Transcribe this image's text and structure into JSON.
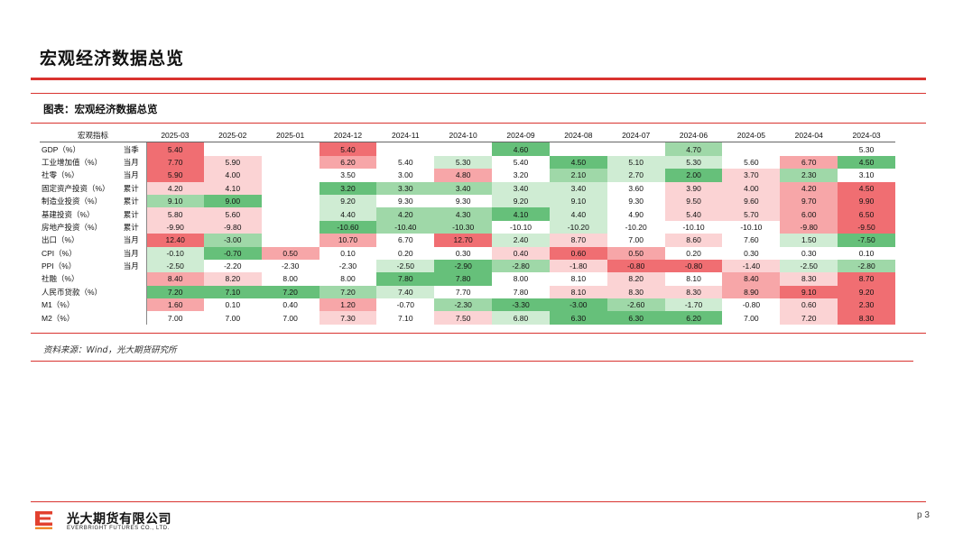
{
  "page": {
    "title": "宏观经济数据总览",
    "figure_title": "图表：宏观经济数据总览",
    "source": "资料来源：Wind，光大期货研究所",
    "page_number": "p 3"
  },
  "footer": {
    "company_cn": "光大期货有限公司",
    "company_en": "EVERBRIGHT FUTURES CO., LTD."
  },
  "colors": {
    "accent": "#d9332f",
    "strong_red": "#f06e72",
    "mid_red": "#f7a6a8",
    "light_red": "#fbd3d4",
    "strong_green": "#66c07a",
    "mid_green": "#9fd8a8",
    "light_green": "#cfecd3"
  },
  "table": {
    "header_label": "宏观指标",
    "columns": [
      "2025-03",
      "2025-02",
      "2025-01",
      "2024-12",
      "2024-11",
      "2024-10",
      "2024-09",
      "2024-08",
      "2024-07",
      "2024-06",
      "2024-05",
      "2024-04",
      "2024-03"
    ],
    "rows": [
      {
        "name": "GDP（%）",
        "freq": "当季",
        "values": [
          "5.40",
          "",
          "",
          "5.40",
          "",
          "",
          "4.60",
          "",
          "",
          "4.70",
          "",
          "",
          "5.30"
        ],
        "tones": [
          "R3",
          "",
          "",
          "R3",
          "",
          "",
          "G3",
          "",
          "",
          "G2",
          "",
          "",
          "N"
        ]
      },
      {
        "name": "工业增加值（%）",
        "freq": "当月",
        "values": [
          "7.70",
          "5.90",
          "",
          "6.20",
          "5.40",
          "5.30",
          "5.40",
          "4.50",
          "5.10",
          "5.30",
          "5.60",
          "6.70",
          "4.50"
        ],
        "tones": [
          "R3",
          "R1",
          "",
          "R2",
          "N",
          "G1",
          "N",
          "G3",
          "G1",
          "G1",
          "N",
          "R2",
          "G3"
        ]
      },
      {
        "name": "社零（%）",
        "freq": "当月",
        "values": [
          "5.90",
          "4.00",
          "",
          "3.50",
          "3.00",
          "4.80",
          "3.20",
          "2.10",
          "2.70",
          "2.00",
          "3.70",
          "2.30",
          "3.10"
        ],
        "tones": [
          "R3",
          "R1",
          "",
          "N",
          "N",
          "R2",
          "N",
          "G2",
          "G1",
          "G3",
          "R1",
          "G2",
          "N"
        ]
      },
      {
        "name": "固定资产投资（%）",
        "freq": "累计",
        "values": [
          "4.20",
          "4.10",
          "",
          "3.20",
          "3.30",
          "3.40",
          "3.40",
          "3.40",
          "3.60",
          "3.90",
          "4.00",
          "4.20",
          "4.50"
        ],
        "tones": [
          "R1",
          "R1",
          "",
          "G3",
          "G2",
          "G2",
          "G1",
          "G1",
          "N",
          "R1",
          "R1",
          "R2",
          "R3"
        ]
      },
      {
        "name": "制造业投资（%）",
        "freq": "累计",
        "values": [
          "9.10",
          "9.00",
          "",
          "9.20",
          "9.30",
          "9.30",
          "9.20",
          "9.10",
          "9.30",
          "9.50",
          "9.60",
          "9.70",
          "9.90"
        ],
        "tones": [
          "G2",
          "G3",
          "",
          "G1",
          "N",
          "N",
          "G1",
          "G1",
          "N",
          "R1",
          "R1",
          "R2",
          "R3"
        ]
      },
      {
        "name": "基建投资（%）",
        "freq": "累计",
        "values": [
          "5.80",
          "5.60",
          "",
          "4.40",
          "4.20",
          "4.30",
          "4.10",
          "4.40",
          "4.90",
          "5.40",
          "5.70",
          "6.00",
          "6.50"
        ],
        "tones": [
          "R1",
          "R1",
          "",
          "G1",
          "G2",
          "G2",
          "G3",
          "G1",
          "N",
          "R1",
          "R1",
          "R2",
          "R3"
        ]
      },
      {
        "name": "房地产投资（%）",
        "freq": "累计",
        "values": [
          "-9.90",
          "-9.80",
          "",
          "-10.60",
          "-10.40",
          "-10.30",
          "-10.10",
          "-10.20",
          "-10.20",
          "-10.10",
          "-10.10",
          "-9.80",
          "-9.50"
        ],
        "tones": [
          "R1",
          "R1",
          "",
          "G3",
          "G2",
          "G2",
          "N",
          "G1",
          "N",
          "N",
          "N",
          "R2",
          "R3"
        ]
      },
      {
        "name": "出口（%）",
        "freq": "当月",
        "values": [
          "12.40",
          "-3.00",
          "",
          "10.70",
          "6.70",
          "12.70",
          "2.40",
          "8.70",
          "7.00",
          "8.60",
          "7.60",
          "1.50",
          "-7.50"
        ],
        "tones": [
          "R3",
          "G2",
          "",
          "R2",
          "N",
          "R3",
          "G1",
          "R1",
          "N",
          "R1",
          "N",
          "G1",
          "G3"
        ]
      },
      {
        "name": "CPI（%）",
        "freq": "当月",
        "values": [
          "-0.10",
          "-0.70",
          "0.50",
          "0.10",
          "0.20",
          "0.30",
          "0.40",
          "0.60",
          "0.50",
          "0.20",
          "0.30",
          "0.30",
          "0.10"
        ],
        "tones": [
          "G1",
          "G3",
          "R2",
          "N",
          "N",
          "N",
          "R1",
          "R3",
          "R2",
          "N",
          "N",
          "N",
          "N"
        ]
      },
      {
        "name": "PPI（%）",
        "freq": "当月",
        "values": [
          "-2.50",
          "-2.20",
          "-2.30",
          "-2.30",
          "-2.50",
          "-2.90",
          "-2.80",
          "-1.80",
          "-0.80",
          "-0.80",
          "-1.40",
          "-2.50",
          "-2.80"
        ],
        "tones": [
          "G1",
          "N",
          "N",
          "N",
          "G1",
          "G3",
          "G2",
          "R1",
          "R3",
          "R3",
          "R1",
          "G1",
          "G2"
        ]
      },
      {
        "name": "社融（%）",
        "freq": "",
        "values": [
          "8.40",
          "8.20",
          "8.00",
          "8.00",
          "7.80",
          "7.80",
          "8.00",
          "8.10",
          "8.20",
          "8.10",
          "8.40",
          "8.30",
          "8.70"
        ],
        "tones": [
          "R2",
          "R1",
          "N",
          "N",
          "G3",
          "G3",
          "N",
          "N",
          "R1",
          "N",
          "R2",
          "R1",
          "R3"
        ]
      },
      {
        "name": "人民币贷款（%）",
        "freq": "",
        "values": [
          "7.20",
          "7.10",
          "7.20",
          "7.20",
          "7.40",
          "7.70",
          "7.80",
          "8.10",
          "8.30",
          "8.30",
          "8.90",
          "9.10",
          "9.20"
        ],
        "tones": [
          "G3",
          "G3",
          "G3",
          "G2",
          "G1",
          "N",
          "N",
          "R1",
          "R1",
          "R1",
          "R2",
          "R3",
          "R3"
        ]
      },
      {
        "name": "M1（%）",
        "freq": "",
        "values": [
          "1.60",
          "0.10",
          "0.40",
          "1.20",
          "-0.70",
          "-2.30",
          "-3.30",
          "-3.00",
          "-2.60",
          "-1.70",
          "-0.80",
          "0.60",
          "2.30"
        ],
        "tones": [
          "R2",
          "N",
          "N",
          "R2",
          "N",
          "G2",
          "G3",
          "G3",
          "G2",
          "G1",
          "N",
          "R1",
          "R3"
        ]
      },
      {
        "name": "M2（%）",
        "freq": "",
        "values": [
          "7.00",
          "7.00",
          "7.00",
          "7.30",
          "7.10",
          "7.50",
          "6.80",
          "6.30",
          "6.30",
          "6.20",
          "7.00",
          "7.20",
          "8.30"
        ],
        "tones": [
          "N",
          "N",
          "N",
          "R1",
          "N",
          "R1",
          "G1",
          "G3",
          "G3",
          "G3",
          "N",
          "R1",
          "R3"
        ]
      }
    ]
  }
}
